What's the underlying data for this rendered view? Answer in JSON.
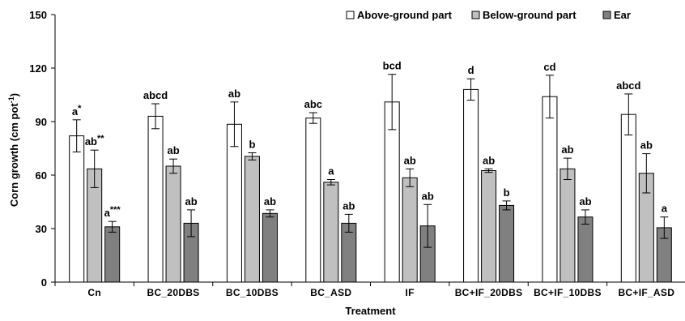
{
  "chart_data": {
    "type": "bar",
    "xlabel": "Treatment",
    "ylabel": "Corn growth (cm pot",
    "ylabel_sup": "-1",
    "ylabel_close": ")",
    "ylim": [
      0,
      150
    ],
    "yticks": [
      0,
      30,
      60,
      90,
      120,
      150
    ],
    "categories": [
      "Cn",
      "BC_20DBS",
      "BC_10DBS",
      "BC_ASD",
      "IF",
      "BC+IF_20DBS",
      "BC+IF_10DBS",
      "BC+IF_ASD"
    ],
    "series": [
      {
        "name": "Above-ground part",
        "color": "#ffffff",
        "values": [
          82,
          93,
          88.5,
          92,
          101,
          108,
          104,
          94
        ],
        "errors": [
          9,
          7,
          12.5,
          3,
          15.5,
          6,
          12,
          11.5
        ],
        "labels": [
          "a*",
          "abcd",
          "ab",
          "abc",
          "bcd",
          "d",
          "cd",
          "abcd"
        ]
      },
      {
        "name": "Below-ground part",
        "color": "#c0c0c0",
        "values": [
          63.5,
          65,
          70.5,
          56,
          58.5,
          62.5,
          63.5,
          61
        ],
        "errors": [
          10.5,
          4,
          2,
          1.5,
          5,
          1,
          6,
          11
        ],
        "labels": [
          "ab**",
          "ab",
          "b",
          "a",
          "ab",
          "ab",
          "ab",
          "ab"
        ]
      },
      {
        "name": "Ear",
        "color": "#808080",
        "values": [
          31,
          33,
          38.5,
          33,
          31.5,
          43,
          36.5,
          30.5
        ],
        "errors": [
          3,
          7.5,
          2,
          5,
          12,
          2.5,
          4,
          6
        ],
        "labels": [
          "a***",
          "ab",
          "ab",
          "ab",
          "ab",
          "b",
          "ab",
          "a"
        ]
      }
    ],
    "legend_position": "top-right",
    "grid": false
  }
}
